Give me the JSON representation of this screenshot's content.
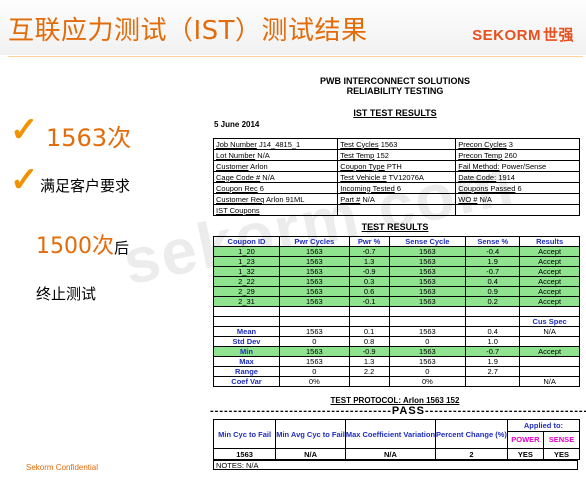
{
  "header": {
    "title": "互联应力测试（IST）测试结果",
    "logo_text": "SEKORM",
    "logo_cn": "世强"
  },
  "left": {
    "bullet1": "1563次",
    "bullet2": "满足客户要求",
    "line3_big": "1500次",
    "line3_small": "后",
    "line4": "终止测试",
    "confidential": "Sekorm Confidential",
    "watermark": "sekorm.com"
  },
  "report": {
    "company": "PWB INTERCONNECT SOLUTIONS",
    "subtitle": "RELIABILITY TESTING",
    "section1": "IST TEST RESULTS",
    "date": "5 June 2014",
    "info": [
      [
        {
          "label": "Job Number",
          "value": " J14_4815_1"
        },
        {
          "label": "Test Cycles",
          "value": " 1563"
        },
        {
          "label": "Precon Cycles",
          "value": " 3"
        }
      ],
      [
        {
          "label": "Lot Number",
          "value": " N/A"
        },
        {
          "label": "Test Temp",
          "value": " 152"
        },
        {
          "label": "Precon Temp",
          "value": " 260"
        }
      ],
      [
        {
          "label": "Customer",
          "value": " Arlon"
        },
        {
          "label": "Coupon Type",
          "value": " PTH"
        },
        {
          "label": "Fail Method:",
          "value": " Power/Sense"
        }
      ],
      [
        {
          "label": "Cage Code #",
          "value": " N/A"
        },
        {
          "label": "Test Vehicle #",
          "value": " TV12076A"
        },
        {
          "label": "Date Code:",
          "value": " 1914"
        }
      ],
      [
        {
          "label": "Coupon Rec",
          "value": " 6"
        },
        {
          "label": "Incoming Tested",
          "value": " 6"
        },
        {
          "label": "Coupons Passed",
          "value": " 6"
        }
      ],
      [
        {
          "label": "Customer Req",
          "value": " Arlon 91ML"
        },
        {
          "label": "Part #",
          "value": " N/A"
        },
        {
          "label": "WO #",
          "value": " N/A"
        }
      ],
      [
        {
          "label": "IST Coupons",
          "value": ""
        },
        {
          "label": "",
          "value": ""
        },
        {
          "label": "",
          "value": ""
        }
      ]
    ],
    "section2": "TEST RESULTS",
    "results_headers": [
      "Coupon ID",
      "Pwr Cycles",
      "Pwr %",
      "Sense Cycle",
      "Sense %",
      "Results"
    ],
    "results_rows": [
      [
        "1_20",
        "1563",
        "-0.7",
        "1563",
        "-0.4",
        "Accept"
      ],
      [
        "1_23",
        "1563",
        "1.3",
        "1563",
        "1.9",
        "Accept"
      ],
      [
        "1_32",
        "1563",
        "-0.9",
        "1563",
        "-0.7",
        "Accept"
      ],
      [
        "2_22",
        "1563",
        "0.3",
        "1563",
        "0.4",
        "Accept"
      ],
      [
        "2_29",
        "1563",
        "0.6",
        "1563",
        "0.9",
        "Accept"
      ],
      [
        "2_31",
        "1563",
        "-0.1",
        "1563",
        "0.2",
        "Accept"
      ]
    ],
    "cus_spec_label": "Cus Spec",
    "stats": [
      {
        "label": "Mean",
        "v": [
          "1563",
          "0.1",
          "1563",
          "0.4",
          "N/A"
        ],
        "green": false
      },
      {
        "label": "Std Dev",
        "v": [
          "0",
          "0.8",
          "0",
          "1.0",
          ""
        ],
        "green": false
      },
      {
        "label": "Min",
        "v": [
          "1563",
          "-0.9",
          "1563",
          "-0.7",
          "Accept"
        ],
        "green": true
      },
      {
        "label": "Max",
        "v": [
          "1563",
          "1.3",
          "1563",
          "1.9",
          ""
        ],
        "green": false
      },
      {
        "label": "Range",
        "v": [
          "0",
          "2.2",
          "0",
          "2.7",
          ""
        ],
        "green": false
      },
      {
        "label": "Coef Var",
        "v": [
          "0%",
          "",
          "0%",
          "",
          "N/A"
        ],
        "green": false
      }
    ],
    "protocol": "TEST PROTOCOL: Arlon  1563  152",
    "pass_line": "---------------------------------------PASS---------------------------------------",
    "summary_headers": [
      "Min Cyc to Fail",
      "Min Avg Cyc to Fail",
      "Max Coefficient Variation",
      "Percent Change (%)"
    ],
    "applied_to": "Applied to:",
    "power": "POWER",
    "sense": "SENSE",
    "summary_values": [
      "1563",
      "N/A",
      "N/A",
      "2",
      "YES",
      "YES"
    ],
    "notes": "NOTES: N/A"
  }
}
